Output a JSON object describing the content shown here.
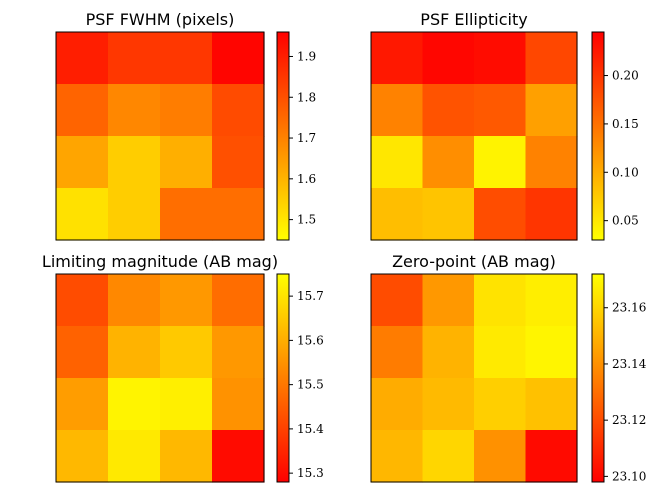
{
  "chart_data": [
    {
      "type": "heatmap",
      "title": "PSF FWHM (pixels)",
      "grid": [
        [
          1.9,
          1.85,
          1.85,
          1.95
        ],
        [
          1.76,
          1.69,
          1.71,
          1.81
        ],
        [
          1.63,
          1.55,
          1.61,
          1.8
        ],
        [
          1.51,
          1.55,
          1.74,
          1.74
        ]
      ],
      "colorbar": {
        "min": 1.45,
        "max": 1.96,
        "ticks": [
          1.5,
          1.6,
          1.7,
          1.8,
          1.9
        ],
        "tick_labels": [
          "1.5",
          "1.6",
          "1.7",
          "1.8",
          "1.9"
        ]
      },
      "colormap": "autumn_r"
    },
    {
      "type": "heatmap",
      "title": "PSF Ellipticity",
      "grid": [
        [
          0.225,
          0.24,
          0.235,
          0.185
        ],
        [
          0.135,
          0.175,
          0.17,
          0.11
        ],
        [
          0.05,
          0.125,
          0.04,
          0.135
        ],
        [
          0.085,
          0.08,
          0.18,
          0.2
        ]
      ],
      "colorbar": {
        "min": 0.03,
        "max": 0.245,
        "ticks": [
          0.05,
          0.1,
          0.15,
          0.2
        ],
        "tick_labels": [
          "0.05",
          "0.10",
          "0.15",
          "0.20"
        ]
      },
      "colormap": "autumn_r"
    },
    {
      "type": "heatmap",
      "title": "Limiting magnitude (AB mag)",
      "grid": [
        [
          15.42,
          15.53,
          15.56,
          15.48
        ],
        [
          15.46,
          15.61,
          15.65,
          15.56
        ],
        [
          15.57,
          15.73,
          15.72,
          15.55
        ],
        [
          15.62,
          15.71,
          15.62,
          15.3
        ]
      ],
      "colorbar": {
        "min": 15.28,
        "max": 15.75,
        "ticks": [
          15.3,
          15.4,
          15.5,
          15.6,
          15.7
        ],
        "tick_labels": [
          "15.3",
          "15.4",
          "15.5",
          "15.6",
          "15.7"
        ]
      },
      "colormap": "autumn"
    },
    {
      "type": "heatmap",
      "title": "Zero-point (AB mag)",
      "grid": [
        [
          23.12,
          23.142,
          23.164,
          23.167
        ],
        [
          23.134,
          23.15,
          23.166,
          23.169
        ],
        [
          23.148,
          23.152,
          23.158,
          23.154
        ],
        [
          23.151,
          23.16,
          23.14,
          23.101
        ]
      ],
      "colorbar": {
        "min": 23.098,
        "max": 23.172,
        "ticks": [
          23.1,
          23.12,
          23.14,
          23.16
        ],
        "tick_labels": [
          "23.10",
          "23.12",
          "23.14",
          "23.16"
        ]
      },
      "colormap": "autumn"
    }
  ]
}
